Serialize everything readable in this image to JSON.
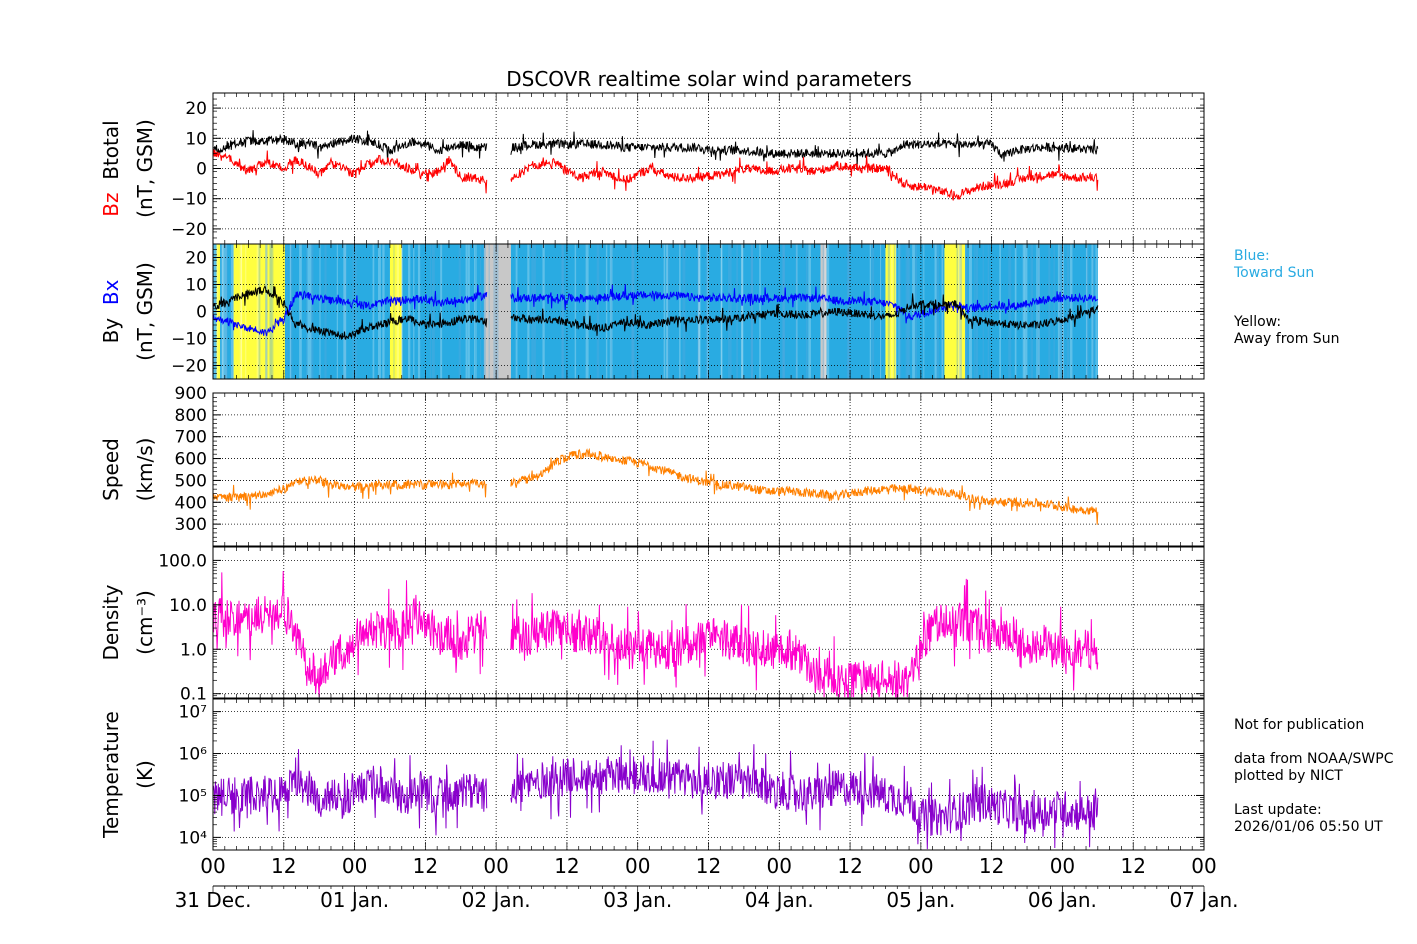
{
  "chart_data": {
    "type": "line",
    "title": "DSCOVR realtime solar wind parameters",
    "x_axis": {
      "range_hours": [
        0,
        168
      ],
      "tick_hours": [
        0,
        12,
        24,
        36,
        48,
        60,
        72,
        84,
        96,
        108,
        120,
        132,
        144,
        156,
        168
      ],
      "hour_labels": [
        "00",
        "12",
        "00",
        "12",
        "00",
        "12",
        "00",
        "12",
        "00",
        "12",
        "00",
        "12",
        "00",
        "12",
        "00"
      ],
      "day_labels": [
        "31 Dec.",
        "01 Jan.",
        "02 Jan.",
        "03 Jan.",
        "04 Jan.",
        "05 Jan.",
        "06 Jan.",
        "07 Jan."
      ],
      "data_end_hour": 150
    },
    "panels": [
      {
        "id": "btotal-bz",
        "ylabel_line1_parts": [
          {
            "text": "Bz",
            "color": "#ff0000"
          },
          {
            "text": "Btotal",
            "color": "#000000"
          }
        ],
        "ylabel_line2": "(nT, GSM)",
        "scale": "linear",
        "ylim": [
          -25,
          25
        ],
        "ticks": [
          20,
          10,
          0,
          -10,
          -20
        ],
        "tick_labels": [
          "20",
          "10",
          "0",
          "−10",
          "−20"
        ],
        "series": [
          {
            "name": "Btotal",
            "color": "#000000",
            "x": [
              0,
              3,
              6,
              9,
              12,
              14,
              16,
              18,
              20,
              22,
              24,
              26,
              28,
              30,
              32,
              34,
              36,
              38,
              40,
              42,
              44,
              46,
              51,
              54,
              58,
              62,
              66,
              70,
              74,
              78,
              82,
              86,
              90,
              94,
              98,
              102,
              106,
              110,
              114,
              116,
              117,
              120,
              126,
              132,
              134,
              136,
              140,
              144,
              150
            ],
            "y": [
              6,
              8,
              9,
              9,
              10,
              8,
              9,
              7,
              8,
              9,
              10,
              9,
              8,
              6,
              7,
              9,
              8,
              6,
              7,
              8,
              7,
              7,
              7,
              8,
              8,
              8,
              8,
              7,
              7,
              7,
              7,
              6,
              6,
              5,
              5,
              5,
              5,
              5,
              5,
              6,
              8,
              8,
              8,
              8,
              4,
              6,
              7,
              7,
              6
            ]
          },
          {
            "name": "Bz",
            "color": "#ff0000",
            "x": [
              0,
              3,
              6,
              9,
              12,
              14,
              16,
              18,
              20,
              22,
              24,
              26,
              28,
              30,
              32,
              34,
              36,
              38,
              40,
              42,
              44,
              46,
              51,
              54,
              58,
              62,
              66,
              70,
              74,
              78,
              82,
              86,
              90,
              94,
              98,
              102,
              106,
              110,
              114,
              116,
              117,
              119,
              121,
              124,
              126,
              130,
              134,
              138,
              142,
              146,
              150
            ],
            "y": [
              5,
              3,
              -1,
              2,
              0,
              3,
              1,
              -2,
              2,
              0,
              -2,
              1,
              3,
              2,
              1,
              -1,
              -2,
              -1,
              3,
              -3,
              -3,
              -4,
              -3,
              1,
              2,
              -3,
              -1,
              -4,
              0,
              -3,
              -3,
              -2,
              0,
              -1,
              0,
              -1,
              1,
              0,
              0,
              -3,
              -5,
              -6,
              -6,
              -8,
              -9,
              -6,
              -5,
              -3,
              -2,
              -3,
              -3
            ]
          }
        ]
      },
      {
        "id": "bx-by",
        "ylabel_line1_parts": [
          {
            "text": "By",
            "color": "#000000"
          },
          {
            "text": "Bx",
            "color": "#0000ff"
          }
        ],
        "ylabel_line2": "(nT, GSM)",
        "scale": "linear",
        "ylim": [
          -25,
          25
        ],
        "ticks": [
          20,
          10,
          0,
          -10,
          -20
        ],
        "tick_labels": [
          "20",
          "10",
          "0",
          "−10",
          "−20"
        ],
        "sector_background": [
          {
            "from": 0,
            "to": 0.6,
            "sector": "toward"
          },
          {
            "from": 0.6,
            "to": 1.2,
            "sector": "away"
          },
          {
            "from": 1.2,
            "to": 3.5,
            "sector": "toward"
          },
          {
            "from": 3.5,
            "to": 12.2,
            "sector": "away"
          },
          {
            "from": 12.2,
            "to": 30,
            "sector": "toward"
          },
          {
            "from": 30,
            "to": 32,
            "sector": "away"
          },
          {
            "from": 32,
            "to": 46,
            "sector": "toward"
          },
          {
            "from": 46,
            "to": 50.5,
            "sector": "gap"
          },
          {
            "from": 50.5,
            "to": 103,
            "sector": "toward"
          },
          {
            "from": 103,
            "to": 104,
            "sector": "gap"
          },
          {
            "from": 104,
            "to": 114,
            "sector": "toward"
          },
          {
            "from": 114,
            "to": 115.8,
            "sector": "away"
          },
          {
            "from": 115.8,
            "to": 124,
            "sector": "toward"
          },
          {
            "from": 124,
            "to": 127.5,
            "sector": "away"
          },
          {
            "from": 127.5,
            "to": 150,
            "sector": "toward"
          }
        ],
        "series": [
          {
            "name": "Bx",
            "color": "#0000ff",
            "x": [
              0,
              3,
              6,
              9,
              12,
              14,
              16,
              18,
              20,
              22,
              24,
              26,
              28,
              30,
              32,
              34,
              36,
              38,
              40,
              42,
              44,
              46,
              51,
              54,
              58,
              62,
              66,
              70,
              74,
              78,
              82,
              86,
              90,
              94,
              98,
              102,
              106,
              110,
              114,
              116,
              118,
              120,
              124,
              126,
              128,
              132,
              136,
              140,
              144,
              150
            ],
            "y": [
              -2,
              -4,
              -6,
              -8,
              -3,
              6,
              6,
              5,
              4,
              4,
              3,
              2,
              3,
              4,
              4,
              5,
              4,
              3,
              4,
              4,
              5,
              6,
              5,
              5,
              5,
              5,
              5,
              6,
              6,
              6,
              5,
              5,
              5,
              5,
              5,
              5,
              4,
              4,
              3,
              2,
              -2,
              -1,
              2,
              3,
              1,
              2,
              2,
              4,
              5,
              5
            ]
          },
          {
            "name": "By",
            "color": "#000000",
            "x": [
              0,
              3,
              6,
              9,
              12,
              14,
              16,
              18,
              20,
              22,
              24,
              26,
              28,
              30,
              32,
              34,
              36,
              38,
              40,
              42,
              44,
              46,
              51,
              54,
              58,
              62,
              66,
              70,
              74,
              78,
              82,
              86,
              90,
              94,
              98,
              102,
              106,
              110,
              114,
              116,
              118,
              120,
              124,
              126,
              128,
              132,
              136,
              140,
              144,
              150
            ],
            "y": [
              2,
              4,
              7,
              8,
              3,
              -5,
              -6,
              -7,
              -8,
              -9,
              -8,
              -6,
              -5,
              -4,
              -3,
              -3,
              -5,
              -5,
              -4,
              -3,
              -2,
              -4,
              -2,
              -3,
              -3,
              -5,
              -6,
              -4,
              -5,
              -3,
              -3,
              -3,
              -2,
              -1,
              -1,
              -1,
              0,
              -1,
              -2,
              -1,
              2,
              3,
              2,
              3,
              -3,
              -4,
              -5,
              -5,
              -3,
              1
            ]
          }
        ]
      },
      {
        "id": "speed",
        "ylabel_line1": "Speed",
        "ylabel_line2": "(km/s)",
        "scale": "linear",
        "ylim": [
          200,
          900
        ],
        "ticks": [
          900,
          800,
          700,
          600,
          500,
          400,
          300
        ],
        "tick_labels": [
          "900",
          "800",
          "700",
          "600",
          "500",
          "400",
          "300"
        ],
        "series": [
          {
            "name": "Speed",
            "color": "#ff8000",
            "x": [
              0,
              4,
              8,
              12,
              14,
              16,
              18,
              20,
              24,
              28,
              32,
              36,
              40,
              44,
              46,
              51,
              54,
              56,
              58,
              60,
              62,
              64,
              66,
              68,
              70,
              72,
              74,
              78,
              82,
              86,
              90,
              94,
              98,
              102,
              106,
              110,
              114,
              118,
              122,
              126,
              128,
              132,
              136,
              140,
              144,
              146,
              150
            ],
            "y": [
              420,
              420,
              430,
              460,
              490,
              500,
              500,
              480,
              470,
              480,
              480,
              480,
              480,
              490,
              480,
              490,
              510,
              530,
              580,
              610,
              620,
              620,
              610,
              600,
              590,
              580,
              570,
              530,
              500,
              480,
              470,
              450,
              450,
              440,
              430,
              450,
              460,
              460,
              450,
              440,
              420,
              400,
              400,
              395,
              380,
              370,
              360
            ]
          }
        ]
      },
      {
        "id": "density",
        "ylabel_line1": "Density",
        "ylabel_line2": "(cm⁻³)",
        "scale": "log",
        "ylim": [
          0.08,
          200
        ],
        "ticks": [
          100,
          10,
          1,
          0.1
        ],
        "tick_labels": [
          "100.0",
          "10.0",
          "1.0",
          "0.1"
        ],
        "series": [
          {
            "name": "Density",
            "color": "#ff00cc",
            "x": [
              0,
              3,
              6,
              9,
              12,
              14,
              16,
              18,
              20,
              22,
              23,
              26,
              28,
              30,
              32,
              34,
              36,
              38,
              40,
              42,
              44,
              46,
              51,
              54,
              58,
              62,
              66,
              70,
              74,
              78,
              82,
              86,
              90,
              94,
              98,
              102,
              106,
              110,
              114,
              118,
              120,
              122,
              124,
              126,
              128,
              130,
              132,
              134,
              136,
              138,
              140,
              142,
              144,
              146,
              148,
              150
            ],
            "y": [
              6,
              5,
              5,
              6,
              8,
              2,
              0.3,
              0.2,
              0.6,
              0.9,
              1,
              3,
              3,
              3,
              3,
              5,
              4,
              2,
              2,
              1.5,
              2,
              3,
              2,
              2,
              3,
              2,
              2,
              1,
              1,
              1,
              1.5,
              2,
              1.2,
              1,
              1,
              0.3,
              0.2,
              0.2,
              0.2,
              0.2,
              1,
              3,
              4,
              4,
              4,
              3,
              2,
              2,
              1,
              1,
              1.5,
              1,
              1,
              1,
              1,
              1
            ]
          }
        ]
      },
      {
        "id": "temperature",
        "ylabel_line1": "Temperature",
        "ylabel_line2": "(K)",
        "scale": "log",
        "ylim": [
          5000,
          20000000
        ],
        "ticks": [
          10000000,
          1000000,
          100000,
          10000
        ],
        "tick_labels": [
          "10⁷",
          "10⁶",
          "10⁵",
          "10⁴"
        ],
        "series": [
          {
            "name": "Temperature",
            "color": "#8800cc",
            "x": [
              0,
              3,
              6,
              9,
              12,
              14,
              16,
              18,
              20,
              22,
              24,
              26,
              28,
              30,
              32,
              34,
              36,
              38,
              40,
              42,
              44,
              46,
              51,
              54,
              58,
              62,
              66,
              70,
              74,
              78,
              82,
              86,
              90,
              94,
              98,
              102,
              106,
              110,
              114,
              118,
              120,
              124,
              128,
              130,
              132,
              134,
              136,
              138,
              140,
              144,
              146,
              150
            ],
            "y": [
              80000,
              100000,
              100000,
              120000,
              100000,
              200000,
              150000,
              80000,
              100000,
              60000,
              150000,
              180000,
              200000,
              120000,
              80000,
              100000,
              120000,
              100000,
              100000,
              150000,
              120000,
              100000,
              150000,
              200000,
              250000,
              300000,
              300000,
              320000,
              300000,
              300000,
              200000,
              250000,
              200000,
              150000,
              120000,
              100000,
              150000,
              150000,
              100000,
              80000,
              30000,
              30000,
              50000,
              80000,
              60000,
              50000,
              40000,
              30000,
              40000,
              50000,
              40000,
              40000
            ]
          }
        ]
      }
    ],
    "legend": {
      "blue_label": "Blue:",
      "blue_desc": "Toward Sun",
      "blue_color": "#29abe2",
      "yellow_label": "Yellow:",
      "yellow_desc": "Away from Sun",
      "yellow_color": "#ffff40",
      "gap_color": "#c8c8c8"
    }
  },
  "notes": {
    "not_for_publication": "Not for publication",
    "data_source": "data from NOAA/SWPC",
    "plotted_by": "plotted by NICT",
    "last_update_label": "Last update:",
    "last_update_value": "2026/01/06 05:50 UT"
  }
}
